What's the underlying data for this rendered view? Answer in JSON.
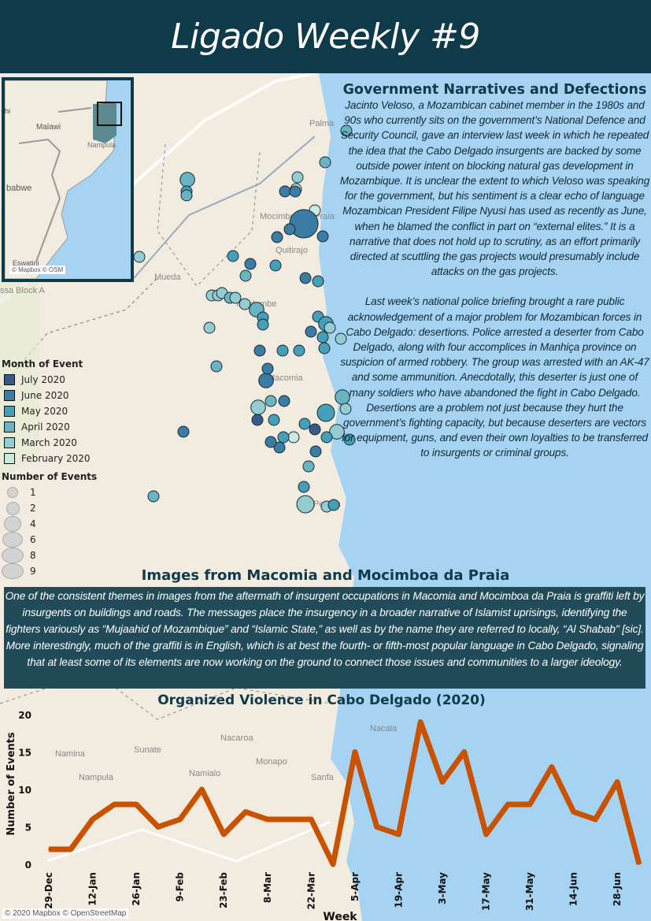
{
  "header": {
    "title": "Ligado Weekly #9"
  },
  "map": {
    "place_labels": [
      "Palma",
      "Mocimboa da Praia",
      "Mueda",
      "Quitirajo",
      "Muidumbe",
      "Macomia",
      "Pemba",
      "Sunate",
      "Nacaroa",
      "Namialo",
      "Monapo",
      "Namina",
      "Nampula",
      "Nacala",
      "Sanfa",
      "ssa Block A"
    ],
    "colors": {
      "sea": "#a7d3f2",
      "land": "#f2ebdf",
      "border": "#9a9a9a",
      "road": "#ffffff"
    },
    "inset": {
      "labels": [
        "Malawi",
        "Nampula",
        "babwe",
        "Eswatini",
        "hi"
      ],
      "attribution": "© Mapbox © OSM",
      "highlight_color": "#5b8a91"
    }
  },
  "legend": {
    "month_title": "Month of Event",
    "months": [
      {
        "label": "July 2020",
        "color": "#375a86"
      },
      {
        "label": "June 2020",
        "color": "#3a7ca3"
      },
      {
        "label": "May 2020",
        "color": "#469fb8"
      },
      {
        "label": "April 2020",
        "color": "#6ab3c2"
      },
      {
        "label": "March 2020",
        "color": "#93cdd2"
      },
      {
        "label": "February 2020",
        "color": "#c8eadf"
      }
    ],
    "size_title": "Number of Events",
    "sizes": [
      {
        "label": "1",
        "n": 1
      },
      {
        "label": "2",
        "n": 2
      },
      {
        "label": "4",
        "n": 4
      },
      {
        "label": "6",
        "n": 6
      },
      {
        "label": "8",
        "n": 8
      },
      {
        "label": "9",
        "n": 9
      }
    ]
  },
  "narratives": {
    "title": "Government Narratives and Defections",
    "p1": "Jacinto Veloso, a Mozambican cabinet member in the 1980s and 90s who currently sits on the government’s National Defence and Security Council, gave an interview last week in which he repeated the idea that the Cabo Delgado insurgents are backed by some outside power intent on blocking natural gas development in Mozambique. It is unclear the extent to which Veloso was speaking for the government, but his sentiment is a clear echo of language Mozambican President Filipe Nyusi has used as recently as June, when he blamed the conflict in part on “external elites.” It is a narrative that does not hold up to scrutiny, as an effort primarily directed at scuttling the gas projects would presumably include attacks on the gas projects.",
    "p2": "Last week’s national police briefing brought a rare public acknowledgement of a major problem for Mozambican forces in Cabo Delgado: desertions. Police arrested a deserter from Cabo Delgado, along with four accomplices in Manhiça province on suspicion of armed robbery. The group was arrested with an AK-47 and some ammunition. Anecdotally, this deserter is just one of many soldiers who have abandoned the fight in Cabo Delgado. Desertions are a problem not just because they hurt the government’s fighting capacity, but because deserters are vectors for equipment, guns, and even their own loyalties to be transferred to insurgents or criminal groups."
  },
  "images": {
    "title": "Images from Macomia and Mocimboa da Praia",
    "text": "One of the consistent themes in images from the aftermath of insurgent occupations in Macomia and Mocimboa da Praia is graffiti left by insurgents on buildings and roads. The messages place the insurgency in a broader narrative of Islamist uprisings, identifying the fighters variously as “Mujaahid of Mozambique” and “Islamic State,” as well as by the name they are referred to locally, “Al Shabab\" [sic]. More interestingly, much of the graffiti is in English, which is at best the fourth- or fifth-most popular language in Cabo Delgado, signaling that at least some of its elements are now working on the ground to connect those issues and communities to a larger ideology."
  },
  "chart_data": {
    "type": "line",
    "title": "Organized Violence in Cabo Delgado (2020)",
    "xlabel": "Week",
    "ylabel": "Number of Events",
    "ylim": [
      0,
      20
    ],
    "yticks": [
      0,
      5,
      10,
      15,
      20
    ],
    "color": "#c85200",
    "x": [
      "29-Dec",
      "5-Jan",
      "12-Jan",
      "19-Jan",
      "26-Jan",
      "2-Feb",
      "9-Feb",
      "16-Feb",
      "23-Feb",
      "1-Mar",
      "8-Mar",
      "15-Mar",
      "22-Mar",
      "29-Mar",
      "5-Apr",
      "12-Apr",
      "19-Apr",
      "26-Apr",
      "3-May",
      "10-May",
      "17-May",
      "24-May",
      "31-May",
      "7-Jun",
      "14-Jun",
      "21-Jun",
      "28-Jun",
      "5-Jul"
    ],
    "xtick_labels": [
      "29-Dec",
      "12-Jan",
      "26-Jan",
      "9-Feb",
      "23-Feb",
      "8-Mar",
      "22-Mar",
      "5-Apr",
      "19-Apr",
      "3-May",
      "17-May",
      "31-May",
      "14-Jun",
      "28-Jun"
    ],
    "values": [
      2,
      2,
      6,
      8,
      8,
      5,
      6,
      10,
      4,
      7,
      6,
      6,
      6,
      0,
      15,
      5,
      4,
      19,
      11,
      15,
      4,
      8,
      8,
      13,
      7,
      6,
      11,
      0
    ],
    "grid": false
  },
  "attribution": "© 2020 Mapbox © OpenStreetMap"
}
